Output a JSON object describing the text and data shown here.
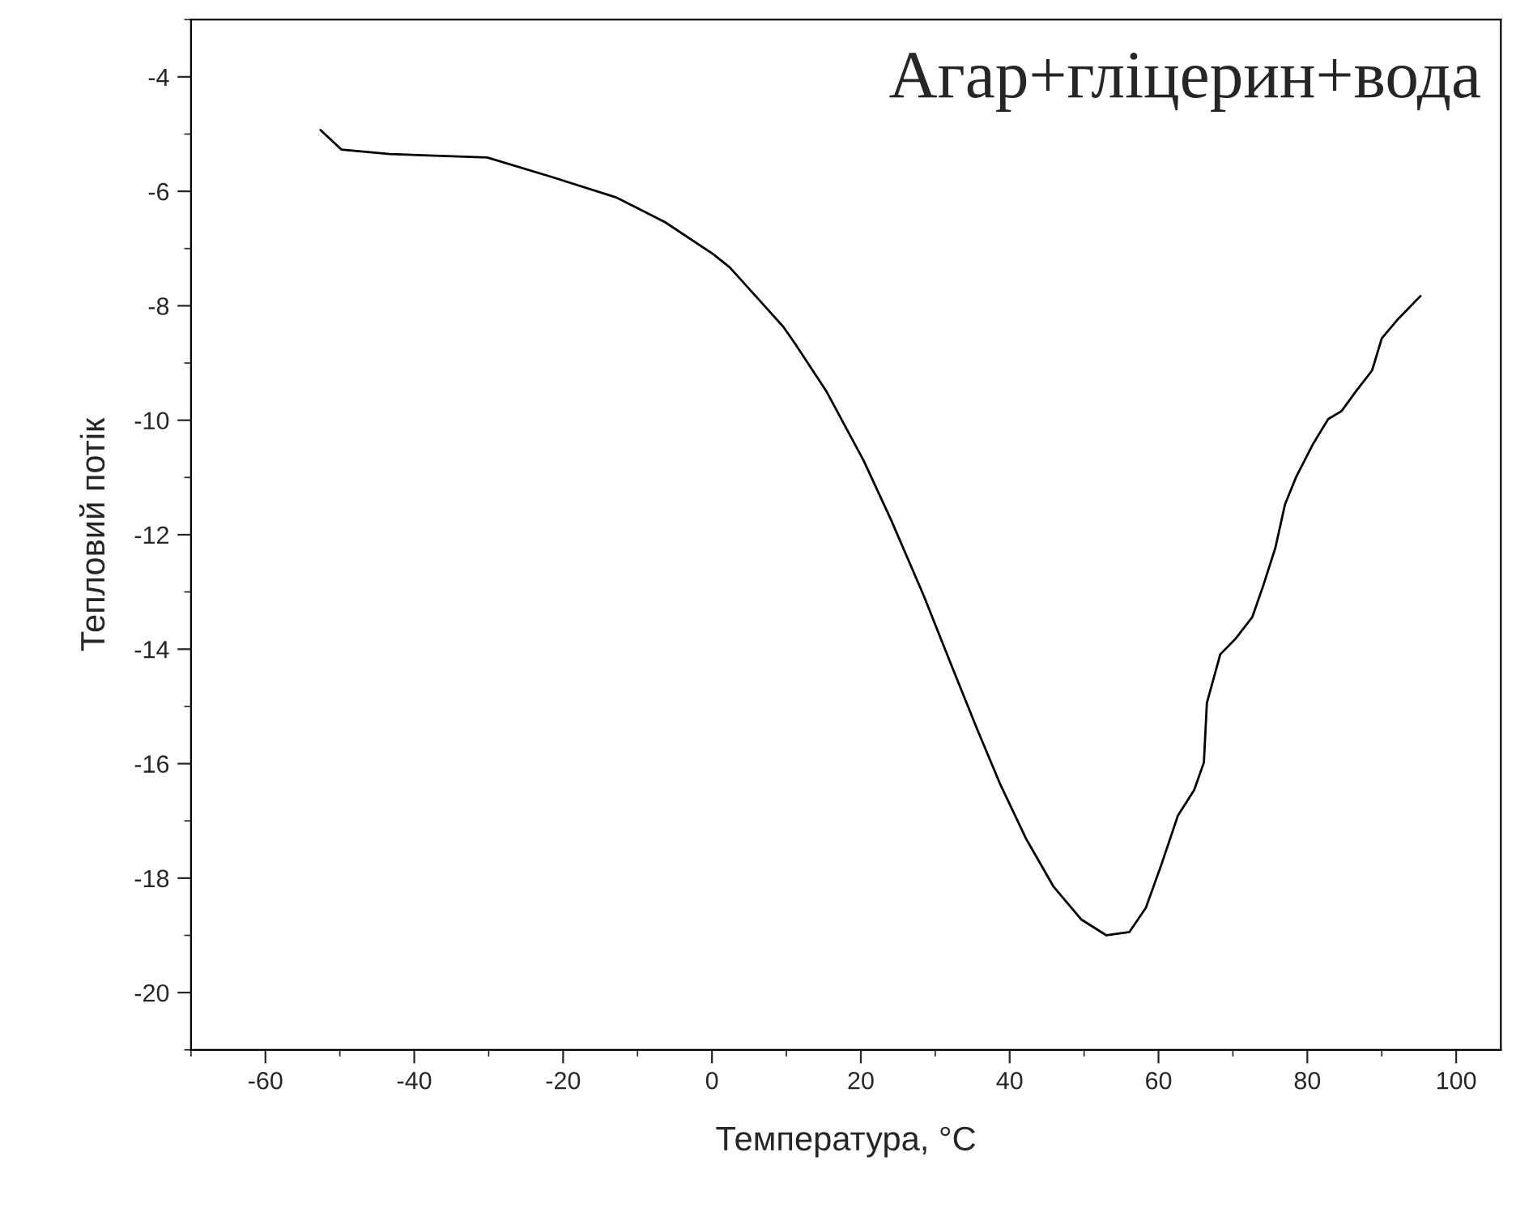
{
  "chart_data": {
    "type": "line",
    "title": "Агар+гліцерин+вода",
    "xlabel": "Температура, °C",
    "ylabel": "Тепловий потік",
    "xlim": [
      -70,
      106
    ],
    "xticks": [
      -60,
      -40,
      -20,
      0,
      20,
      40,
      60,
      80,
      100
    ],
    "ylim": [
      -21,
      -3
    ],
    "yticks": [
      -20,
      -18,
      -16,
      -14,
      -12,
      -10,
      -8,
      -6,
      -4
    ],
    "grid": false,
    "legend": false,
    "series": [
      {
        "color": "#000000",
        "x": [
          -52.6,
          -49.8,
          -43.3,
          -30.2,
          -21.5,
          -12.8,
          -6.3,
          0.2,
          2.4,
          6.7,
          9.6,
          11.1,
          15.4,
          20.4,
          24.1,
          28.5,
          32.2,
          35.7,
          38.7,
          42.2,
          45.9,
          49.6,
          53.0,
          56.1,
          58.3,
          60.4,
          62.6,
          64.8,
          66.1,
          66.5,
          68.3,
          70.4,
          72.6,
          74.1,
          75.7,
          77.0,
          78.5,
          80.7,
          82.8,
          84.6,
          86.5,
          88.7,
          90.0,
          92.2,
          95.2
        ],
        "values": [
          -4.93,
          -5.27,
          -5.35,
          -5.41,
          -5.75,
          -6.11,
          -6.54,
          -7.1,
          -7.33,
          -7.95,
          -8.37,
          -8.65,
          -9.5,
          -10.71,
          -11.75,
          -13.08,
          -14.29,
          -15.42,
          -16.35,
          -17.31,
          -18.15,
          -18.72,
          -19.0,
          -18.94,
          -18.52,
          -17.76,
          -16.91,
          -16.46,
          -15.98,
          -14.94,
          -14.09,
          -13.81,
          -13.44,
          -12.88,
          -12.23,
          -11.47,
          -10.99,
          -10.43,
          -9.98,
          -9.84,
          -9.5,
          -9.13,
          -8.57,
          -8.23,
          -7.83
        ]
      }
    ]
  }
}
